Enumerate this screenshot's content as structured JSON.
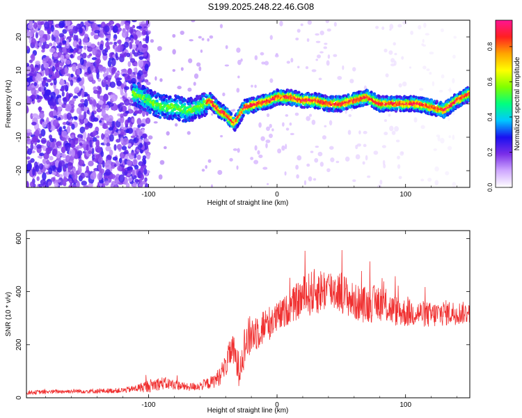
{
  "figure": {
    "title": "S199.2025.248.22.46.G08"
  },
  "chart_data": [
    {
      "type": "heatmap",
      "xlabel": "Height of straight line (km)",
      "ylabel": "Frequency (Hz)",
      "xlim": [
        -195,
        150
      ],
      "ylim": [
        -25,
        25
      ],
      "x_ticks": [
        -100,
        0,
        100
      ],
      "y_ticks": [
        -20,
        -10,
        0,
        10,
        20
      ],
      "colorbar": {
        "label": "Normalized spectral amplitude",
        "range": [
          0,
          0.95
        ],
        "ticks": [
          "0.0",
          "0.2",
          "0.4",
          "0.6",
          "0.8"
        ],
        "colors": [
          "#ffffff",
          "#cfa8ff",
          "#7a2ee8",
          "#1a10f0",
          "#00c8ff",
          "#00ff7f",
          "#7fff00",
          "#ffff00",
          "#ffa500",
          "#ff2020",
          "#ff1493"
        ]
      },
      "ridge": {
        "description_points_x": [
          -110,
          -100,
          -90,
          -80,
          -70,
          -60,
          -52,
          -45,
          -40,
          -33,
          -25,
          -15,
          -5,
          0,
          10,
          20,
          30,
          40,
          50,
          60,
          70,
          80,
          90,
          100,
          110,
          120,
          130,
          140,
          150
        ],
        "description_points_y": [
          3,
          1,
          -1,
          -1,
          -2,
          -1,
          1,
          -2,
          -3,
          -6,
          -1,
          0,
          1,
          2,
          2,
          1,
          1,
          0,
          0,
          1,
          2,
          0,
          0,
          0,
          0,
          -1,
          -2,
          1,
          3
        ]
      }
    },
    {
      "type": "line",
      "xlabel": "Height of straight line (km)",
      "ylabel": "SNR (10 * v/v)",
      "xlim": [
        -195,
        150
      ],
      "ylim": [
        0,
        630
      ],
      "x_ticks": [
        -100,
        0,
        100
      ],
      "y_ticks": [
        0,
        200,
        400,
        600
      ],
      "series": [
        {
          "name": "SNR",
          "color": "#f03030",
          "x": [
            -195,
            -180,
            -160,
            -140,
            -120,
            -110,
            -100,
            -90,
            -80,
            -70,
            -60,
            -50,
            -45,
            -40,
            -35,
            -30,
            -25,
            -20,
            -10,
            0,
            10,
            20,
            30,
            40,
            50,
            60,
            70,
            80,
            90,
            100,
            110,
            120,
            130,
            140,
            150
          ],
          "y": [
            20,
            22,
            25,
            25,
            28,
            35,
            45,
            55,
            50,
            40,
            45,
            60,
            80,
            120,
            190,
            110,
            200,
            240,
            270,
            300,
            340,
            380,
            400,
            410,
            400,
            360,
            350,
            360,
            330,
            320,
            320,
            310,
            320,
            320,
            320
          ],
          "noise_amplitude": [
            8,
            8,
            8,
            9,
            10,
            14,
            25,
            25,
            20,
            15,
            18,
            25,
            35,
            45,
            60,
            70,
            80,
            80,
            70,
            60,
            60,
            80,
            90,
            80,
            80,
            70,
            70,
            70,
            60,
            55,
            50,
            50,
            50,
            45,
            40
          ]
        }
      ]
    }
  ]
}
